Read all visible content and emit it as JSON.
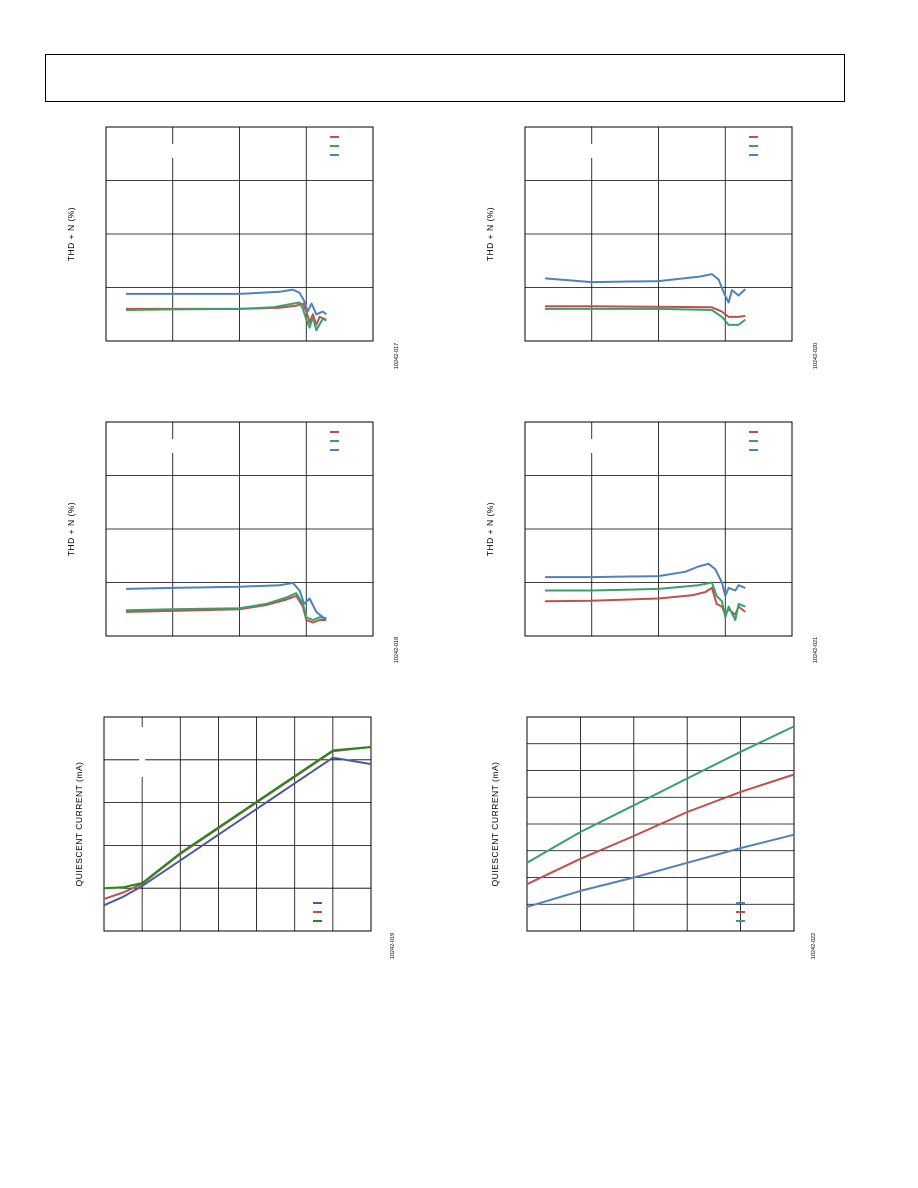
{
  "page": {
    "header_text": ""
  },
  "chart_data": [
    {
      "id": "thd-1",
      "type": "line",
      "ylabel": "THD + N (%)",
      "figure_code": "10242-017",
      "x_divisions": 4,
      "y_divisions": 4,
      "xlim": [
        0,
        4
      ],
      "ylim": [
        0,
        4
      ],
      "legend": {
        "placement": "top-right"
      },
      "series": [
        {
          "color": "#c0504d",
          "points": [
            [
              0.3,
              0.6
            ],
            [
              1.0,
              0.6
            ],
            [
              2.0,
              0.6
            ],
            [
              2.6,
              0.62
            ],
            [
              2.85,
              0.66
            ],
            [
              2.95,
              0.7
            ],
            [
              3.0,
              0.55
            ],
            [
              3.05,
              0.35
            ],
            [
              3.1,
              0.5
            ],
            [
              3.15,
              0.3
            ],
            [
              3.2,
              0.45
            ],
            [
              3.3,
              0.4
            ]
          ]
        },
        {
          "color": "#3aa06a",
          "points": [
            [
              0.3,
              0.58
            ],
            [
              1.0,
              0.59
            ],
            [
              2.0,
              0.6
            ],
            [
              2.5,
              0.63
            ],
            [
              2.8,
              0.7
            ],
            [
              2.9,
              0.72
            ],
            [
              2.95,
              0.6
            ],
            [
              3.0,
              0.4
            ],
            [
              3.05,
              0.25
            ],
            [
              3.1,
              0.45
            ],
            [
              3.15,
              0.2
            ],
            [
              3.25,
              0.42
            ],
            [
              3.3,
              0.38
            ]
          ]
        },
        {
          "color": "#4f81bd",
          "points": [
            [
              0.3,
              0.88
            ],
            [
              1.0,
              0.88
            ],
            [
              2.0,
              0.88
            ],
            [
              2.6,
              0.92
            ],
            [
              2.8,
              0.96
            ],
            [
              2.9,
              0.9
            ],
            [
              2.97,
              0.75
            ],
            [
              3.02,
              0.55
            ],
            [
              3.08,
              0.7
            ],
            [
              3.15,
              0.5
            ],
            [
              3.25,
              0.55
            ],
            [
              3.3,
              0.5
            ]
          ]
        }
      ]
    },
    {
      "id": "thd-2",
      "type": "line",
      "ylabel": "THD + N (%)",
      "figure_code": "10242-020",
      "x_divisions": 4,
      "y_divisions": 4,
      "xlim": [
        0,
        4
      ],
      "ylim": [
        0,
        4
      ],
      "legend": {
        "placement": "top-right"
      },
      "series": [
        {
          "color": "#c0504d",
          "points": [
            [
              0.3,
              0.65
            ],
            [
              1.0,
              0.65
            ],
            [
              2.0,
              0.64
            ],
            [
              2.8,
              0.63
            ],
            [
              2.95,
              0.55
            ],
            [
              3.05,
              0.45
            ],
            [
              3.2,
              0.45
            ],
            [
              3.3,
              0.47
            ]
          ]
        },
        {
          "color": "#3aa06a",
          "points": [
            [
              0.3,
              0.6
            ],
            [
              1.0,
              0.6
            ],
            [
              2.0,
              0.6
            ],
            [
              2.8,
              0.58
            ],
            [
              2.95,
              0.45
            ],
            [
              3.05,
              0.3
            ],
            [
              3.2,
              0.3
            ],
            [
              3.3,
              0.4
            ]
          ]
        },
        {
          "color": "#4f81bd",
          "points": [
            [
              0.3,
              1.17
            ],
            [
              1.0,
              1.1
            ],
            [
              2.0,
              1.12
            ],
            [
              2.6,
              1.2
            ],
            [
              2.8,
              1.25
            ],
            [
              2.9,
              1.15
            ],
            [
              2.98,
              0.9
            ],
            [
              3.05,
              0.72
            ],
            [
              3.1,
              0.95
            ],
            [
              3.2,
              0.85
            ],
            [
              3.3,
              0.97
            ]
          ]
        }
      ]
    },
    {
      "id": "thd-3",
      "type": "line",
      "ylabel": "THD + N (%)",
      "figure_code": "10242-018",
      "x_divisions": 4,
      "y_divisions": 4,
      "xlim": [
        0,
        4
      ],
      "ylim": [
        0,
        4
      ],
      "legend": {
        "placement": "top-right"
      },
      "series": [
        {
          "color": "#c0504d",
          "points": [
            [
              0.3,
              0.45
            ],
            [
              1.0,
              0.47
            ],
            [
              2.0,
              0.5
            ],
            [
              2.4,
              0.58
            ],
            [
              2.7,
              0.68
            ],
            [
              2.85,
              0.75
            ],
            [
              2.95,
              0.55
            ],
            [
              3.0,
              0.3
            ],
            [
              3.1,
              0.25
            ],
            [
              3.2,
              0.3
            ],
            [
              3.3,
              0.3
            ]
          ]
        },
        {
          "color": "#3aa06a",
          "points": [
            [
              0.3,
              0.48
            ],
            [
              1.0,
              0.5
            ],
            [
              2.0,
              0.52
            ],
            [
              2.4,
              0.6
            ],
            [
              2.7,
              0.72
            ],
            [
              2.85,
              0.8
            ],
            [
              2.95,
              0.6
            ],
            [
              3.0,
              0.35
            ],
            [
              3.1,
              0.3
            ],
            [
              3.2,
              0.35
            ],
            [
              3.3,
              0.33
            ]
          ]
        },
        {
          "color": "#4f81bd",
          "points": [
            [
              0.3,
              0.88
            ],
            [
              1.0,
              0.9
            ],
            [
              2.0,
              0.92
            ],
            [
              2.6,
              0.95
            ],
            [
              2.8,
              0.99
            ],
            [
              2.9,
              0.85
            ],
            [
              2.97,
              0.6
            ],
            [
              3.05,
              0.7
            ],
            [
              3.15,
              0.45
            ],
            [
              3.25,
              0.35
            ],
            [
              3.3,
              0.32
            ]
          ]
        }
      ]
    },
    {
      "id": "thd-4",
      "type": "line",
      "ylabel": "THD + N (%)",
      "figure_code": "10242-021",
      "x_divisions": 4,
      "y_divisions": 4,
      "xlim": [
        0,
        4
      ],
      "ylim": [
        0,
        4
      ],
      "legend": {
        "placement": "top-right"
      },
      "series": [
        {
          "color": "#c0504d",
          "points": [
            [
              0.3,
              0.65
            ],
            [
              1.0,
              0.66
            ],
            [
              2.0,
              0.7
            ],
            [
              2.5,
              0.76
            ],
            [
              2.7,
              0.82
            ],
            [
              2.8,
              0.9
            ],
            [
              2.87,
              0.6
            ],
            [
              2.95,
              0.55
            ],
            [
              3.0,
              0.4
            ],
            [
              3.05,
              0.5
            ],
            [
              3.15,
              0.4
            ],
            [
              3.2,
              0.55
            ],
            [
              3.3,
              0.45
            ]
          ]
        },
        {
          "color": "#3aa06a",
          "points": [
            [
              0.3,
              0.85
            ],
            [
              1.0,
              0.85
            ],
            [
              2.0,
              0.88
            ],
            [
              2.6,
              0.95
            ],
            [
              2.8,
              1.0
            ],
            [
              2.87,
              0.75
            ],
            [
              2.95,
              0.65
            ],
            [
              3.0,
              0.35
            ],
            [
              3.05,
              0.55
            ],
            [
              3.15,
              0.3
            ],
            [
              3.2,
              0.6
            ],
            [
              3.3,
              0.55
            ]
          ]
        },
        {
          "color": "#4f81bd",
          "points": [
            [
              0.3,
              1.1
            ],
            [
              1.0,
              1.1
            ],
            [
              2.0,
              1.12
            ],
            [
              2.4,
              1.2
            ],
            [
              2.6,
              1.3
            ],
            [
              2.75,
              1.35
            ],
            [
              2.85,
              1.25
            ],
            [
              2.95,
              1.0
            ],
            [
              3.0,
              0.75
            ],
            [
              3.05,
              0.9
            ],
            [
              3.15,
              0.85
            ],
            [
              3.2,
              0.95
            ],
            [
              3.3,
              0.9
            ]
          ]
        }
      ]
    },
    {
      "id": "iq-1",
      "type": "line",
      "ylabel": "QUIESCENT CURRENT (mA)",
      "figure_code": "10242-019",
      "x_divisions": 7,
      "y_divisions": 5,
      "xlim": [
        0,
        7
      ],
      "ylim": [
        0,
        5
      ],
      "legend": {
        "placement": "bottom-right"
      },
      "series": [
        {
          "color": "#4a5a9e",
          "points": [
            [
              0,
              0.6
            ],
            [
              0.5,
              0.8
            ],
            [
              1,
              1.05
            ],
            [
              2,
              1.65
            ],
            [
              3,
              2.25
            ],
            [
              4,
              2.85
            ],
            [
              5,
              3.45
            ],
            [
              6,
              4.05
            ],
            [
              7,
              3.9
            ]
          ]
        },
        {
          "color": "#c0504d",
          "points": [
            [
              0,
              0.75
            ],
            [
              0.5,
              0.9
            ],
            [
              1,
              1.1
            ],
            [
              2,
              1.8
            ],
            [
              3,
              2.4
            ],
            [
              4,
              3.0
            ],
            [
              5,
              3.6
            ],
            [
              6,
              4.2
            ],
            [
              7,
              4.3
            ]
          ]
        },
        {
          "color": "#1f8a1f",
          "points": [
            [
              0,
              1.0
            ],
            [
              0.5,
              1.02
            ],
            [
              1,
              1.12
            ],
            [
              2,
              1.82
            ],
            [
              3,
              2.42
            ],
            [
              4,
              3.02
            ],
            [
              5,
              3.62
            ],
            [
              6,
              4.22
            ],
            [
              7,
              4.3
            ]
          ]
        }
      ]
    },
    {
      "id": "iq-2",
      "type": "line",
      "ylabel": "QUIESCENT CURRENT (mA)",
      "figure_code": "10242-022",
      "x_divisions": 5,
      "y_divisions": 8,
      "xlim": [
        0,
        5
      ],
      "ylim": [
        0,
        8
      ],
      "legend": {
        "placement": "bottom-right"
      },
      "series": [
        {
          "color": "#4f81bd",
          "points": [
            [
              0,
              0.9
            ],
            [
              1,
              1.5
            ],
            [
              2,
              2.0
            ],
            [
              3,
              2.55
            ],
            [
              4,
              3.1
            ],
            [
              5,
              3.6
            ]
          ]
        },
        {
          "color": "#c0504d",
          "points": [
            [
              0,
              1.75
            ],
            [
              1,
              2.7
            ],
            [
              2,
              3.55
            ],
            [
              3,
              4.45
            ],
            [
              4,
              5.2
            ],
            [
              5,
              5.85
            ]
          ]
        },
        {
          "color": "#3aa06a",
          "points": [
            [
              0,
              2.55
            ],
            [
              1,
              3.7
            ],
            [
              2,
              4.7
            ],
            [
              3,
              5.7
            ],
            [
              4,
              6.7
            ],
            [
              5,
              7.65
            ]
          ]
        }
      ]
    }
  ]
}
